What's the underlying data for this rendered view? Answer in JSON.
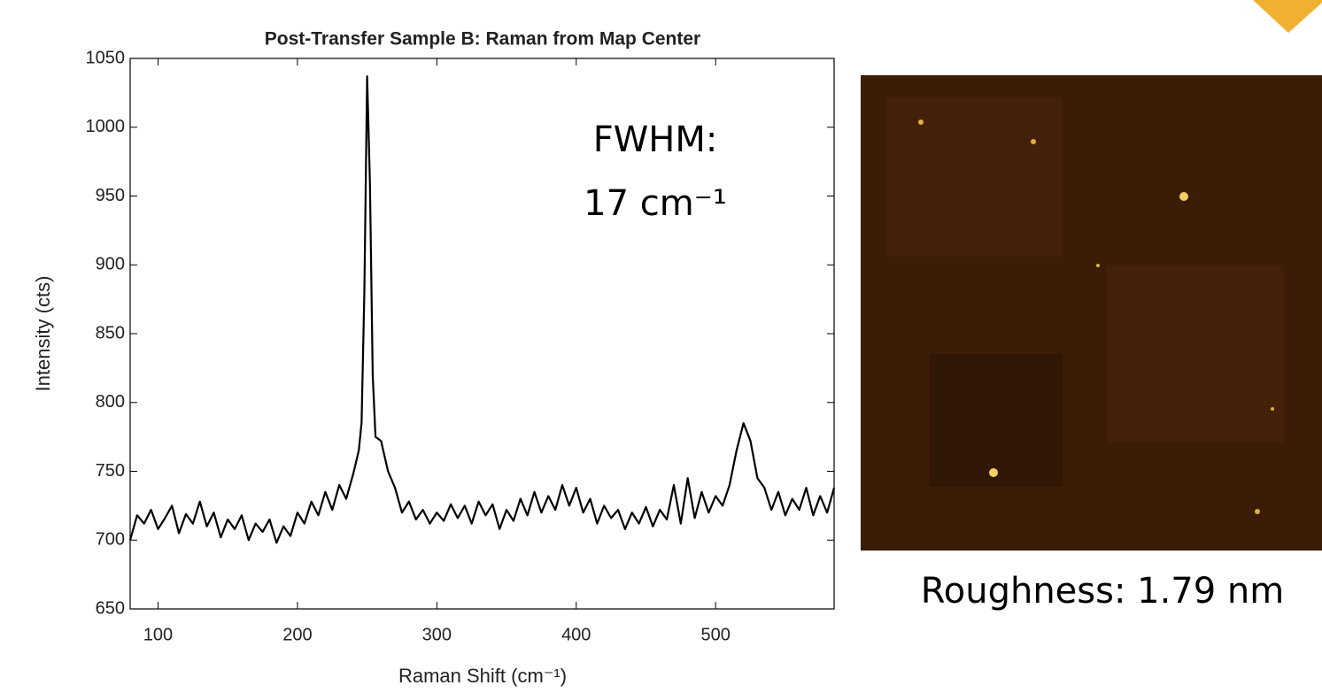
{
  "chart_data": {
    "type": "line",
    "title": "Post-Transfer Sample B: Raman from Map Center",
    "x_label": "Raman Shift (cm⁻¹)",
    "y_label": "Intensity (cts)",
    "annotations": [
      "FWHM:",
      "17 cm⁻¹"
    ],
    "side_caption": "Roughness: 1.79 nm",
    "color": "#000000",
    "xlim": [
      80,
      585
    ],
    "ylim": [
      650,
      1050
    ],
    "xticks": [
      100,
      200,
      300,
      400,
      500
    ],
    "yticks": [
      650,
      700,
      750,
      800,
      850,
      900,
      950,
      1000,
      1050
    ],
    "x": [
      80,
      85,
      90,
      95,
      100,
      105,
      110,
      115,
      120,
      125,
      130,
      135,
      140,
      145,
      150,
      155,
      160,
      165,
      170,
      175,
      180,
      185,
      190,
      195,
      200,
      205,
      210,
      215,
      220,
      225,
      230,
      235,
      240,
      244,
      246,
      248,
      250,
      252,
      254,
      256,
      260,
      265,
      270,
      275,
      280,
      285,
      290,
      295,
      300,
      305,
      310,
      315,
      320,
      325,
      330,
      335,
      340,
      345,
      350,
      355,
      360,
      365,
      370,
      375,
      380,
      385,
      390,
      395,
      400,
      405,
      410,
      415,
      420,
      425,
      430,
      435,
      440,
      445,
      450,
      455,
      460,
      465,
      470,
      475,
      480,
      485,
      490,
      495,
      500,
      505,
      510,
      515,
      520,
      525,
      530,
      535,
      540,
      545,
      550,
      555,
      560,
      565,
      570,
      575,
      580,
      585
    ],
    "values": [
      700,
      718,
      712,
      722,
      708,
      716,
      725,
      705,
      719,
      712,
      728,
      710,
      720,
      702,
      715,
      708,
      718,
      700,
      712,
      706,
      715,
      698,
      710,
      703,
      720,
      712,
      728,
      718,
      735,
      722,
      740,
      730,
      748,
      765,
      785,
      880,
      1037,
      960,
      820,
      775,
      772,
      750,
      738,
      720,
      728,
      715,
      722,
      712,
      720,
      714,
      726,
      716,
      725,
      712,
      728,
      718,
      726,
      708,
      722,
      714,
      730,
      718,
      735,
      720,
      732,
      722,
      740,
      725,
      738,
      720,
      730,
      712,
      725,
      716,
      722,
      708,
      720,
      712,
      724,
      710,
      722,
      715,
      740,
      712,
      745,
      716,
      735,
      720,
      732,
      725,
      740,
      765,
      785,
      772,
      745,
      738,
      722,
      735,
      718,
      730,
      722,
      738,
      718,
      732,
      720,
      738
    ]
  }
}
